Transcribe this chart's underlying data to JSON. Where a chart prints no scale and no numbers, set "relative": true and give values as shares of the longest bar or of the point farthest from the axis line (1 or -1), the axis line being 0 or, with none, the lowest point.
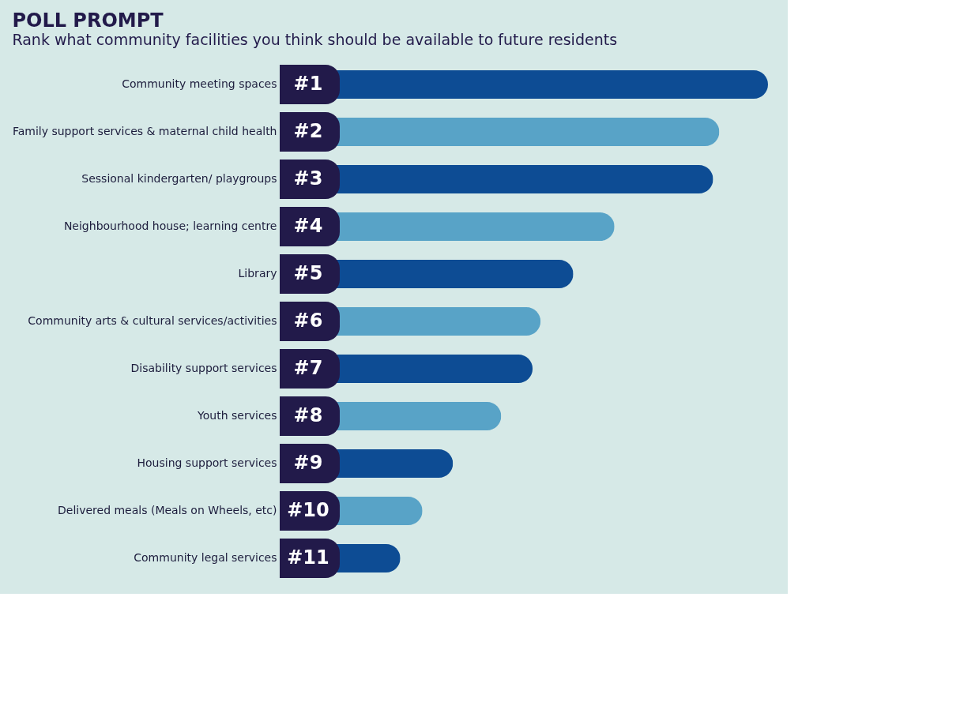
{
  "chart_data": {
    "type": "bar",
    "orientation": "horizontal",
    "relative": true,
    "title": "POLL PROMPT",
    "subtitle": "Rank what community facilities you think should be available to future residents",
    "categories": [
      "Community meeting spaces",
      "Family support services & maternal child health",
      "Sessional kindergarten/ playgroups",
      "Neighbourhood house; learning centre",
      "Library",
      "Community arts & cultural services/activities",
      "Disability support services",
      "Youth services",
      "Housing support services",
      "Delivered meals (Meals on Wheels, etc)",
      "Community legal services"
    ],
    "values": [
      1,
      0.89,
      0.876,
      0.653,
      0.56,
      0.486,
      0.468,
      0.397,
      0.288,
      0.219,
      0.169
    ],
    "colors": [
      "#0d4c94",
      "#58a3c7",
      "#0d4c94",
      "#58a3c7",
      "#0d4c94",
      "#58a3c7",
      "#0d4c94",
      "#58a3c7",
      "#0d4c94",
      "#58a3c7",
      "#0d4c94"
    ],
    "annotations": [
      "#1",
      "#2",
      "#3",
      "#4",
      "#5",
      "#6",
      "#7",
      "#8",
      "#9",
      "#10",
      "#11"
    ],
    "grid": false
  }
}
